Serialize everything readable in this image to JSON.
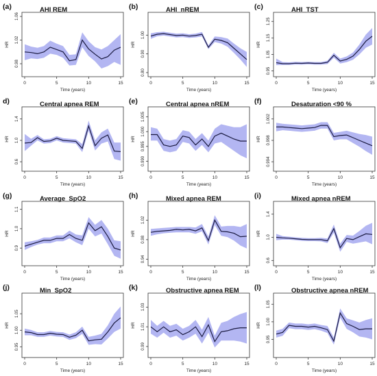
{
  "style": {
    "band_color": "#b3b6f2",
    "line_color": "#1a1a40",
    "axis_color": "#333333"
  },
  "chart_data": [
    {
      "type": "line",
      "letter": "(a)",
      "title": "AHI  REM",
      "xlabel": "Time (years)",
      "ylabel": "HR",
      "xlim": [
        0,
        15
      ],
      "xticks": [
        0,
        5,
        10,
        15
      ],
      "ylim": [
        0.965,
        1.06
      ],
      "yticks": [
        "0.98",
        "1.02",
        "1.06"
      ],
      "x": [
        0,
        1,
        2,
        3,
        4,
        5,
        6,
        7,
        8,
        9,
        10,
        11,
        12,
        13,
        14,
        15
      ],
      "y": [
        1.0,
        0.999,
        0.997,
        1.0,
        1.008,
        1.004,
        1.0,
        0.985,
        0.987,
        1.02,
        1.005,
        0.996,
        0.988,
        0.992,
        1.003,
        1.008
      ],
      "lower": [
        0.986,
        0.989,
        0.988,
        0.99,
        0.997,
        0.995,
        0.99,
        0.977,
        0.978,
        1.008,
        0.993,
        0.984,
        0.972,
        0.976,
        0.983,
        0.978
      ],
      "upper": [
        1.013,
        1.009,
        1.007,
        1.01,
        1.019,
        1.014,
        1.01,
        0.995,
        0.996,
        1.033,
        1.018,
        1.008,
        1.004,
        1.01,
        1.02,
        1.03
      ]
    },
    {
      "type": "line",
      "letter": "(b)",
      "title": "AHI_nREM",
      "xlabel": "Time (years)",
      "ylabel": "HR",
      "xlim": [
        0,
        15
      ],
      "xticks": [
        0,
        5,
        10,
        15
      ],
      "ylim": [
        0.8,
        1.1
      ],
      "yticks": [
        "0.80",
        "0.90",
        "1.00"
      ],
      "x": [
        0,
        1,
        2,
        3,
        4,
        5,
        6,
        7,
        8,
        9,
        10,
        11,
        12,
        13,
        14,
        15
      ],
      "y": [
        0.995,
        1.005,
        1.008,
        1.003,
        0.998,
        1.0,
        0.995,
        0.998,
        1.005,
        0.935,
        0.978,
        0.972,
        0.96,
        0.93,
        0.9,
        0.87
      ],
      "lower": [
        0.98,
        0.994,
        0.998,
        0.993,
        0.988,
        0.99,
        0.985,
        0.988,
        0.993,
        0.925,
        0.963,
        0.955,
        0.938,
        0.905,
        0.87,
        0.83
      ],
      "upper": [
        1.01,
        1.016,
        1.018,
        1.013,
        1.008,
        1.01,
        1.005,
        1.008,
        1.017,
        0.946,
        0.993,
        0.99,
        0.982,
        0.955,
        0.93,
        0.91
      ]
    },
    {
      "type": "line",
      "letter": "(c)",
      "title": "AHI_TST",
      "xlabel": "Time (years)",
      "ylabel": "HR",
      "xlim": [
        0,
        15
      ],
      "xticks": [
        0,
        5,
        10,
        15
      ],
      "ylim": [
        0.94,
        1.28
      ],
      "yticks": [
        "0.95",
        "1.05",
        "1.15",
        "1.25"
      ],
      "x": [
        0,
        1,
        2,
        3,
        4,
        5,
        6,
        7,
        8,
        9,
        10,
        11,
        12,
        13,
        14,
        15
      ],
      "y": [
        1.0,
        0.994,
        0.994,
        0.997,
        0.996,
        0.998,
        0.996,
        0.996,
        1.002,
        1.045,
        1.01,
        1.02,
        1.04,
        1.08,
        1.13,
        1.16
      ],
      "lower": [
        0.985,
        0.986,
        0.986,
        0.989,
        0.988,
        0.99,
        0.988,
        0.988,
        0.992,
        1.03,
        0.995,
        1.003,
        1.018,
        1.05,
        1.09,
        1.11
      ],
      "upper": [
        1.025,
        1.004,
        1.002,
        1.005,
        1.004,
        1.006,
        1.004,
        1.004,
        1.012,
        1.06,
        1.025,
        1.038,
        1.062,
        1.11,
        1.17,
        1.21
      ]
    },
    {
      "type": "line",
      "letter": "d)",
      "title": "Central  apnea  REM",
      "xlabel": "Time (years)",
      "ylabel": "HR",
      "xlim": [
        0,
        15
      ],
      "xticks": [
        0,
        5,
        10,
        15
      ],
      "ylim": [
        0.5,
        1.55
      ],
      "yticks": [
        "0.6",
        "1.0",
        "1.4"
      ],
      "x": [
        0,
        1,
        2,
        3,
        4,
        5,
        6,
        7,
        8,
        9,
        10,
        11,
        12,
        13,
        14,
        15
      ],
      "y": [
        0.95,
        0.96,
        1.05,
        0.98,
        0.99,
        1.04,
        1.0,
        0.99,
        0.98,
        0.85,
        1.27,
        0.9,
        1.04,
        1.1,
        0.8,
        0.79
      ],
      "lower": [
        0.8,
        0.9,
        1.0,
        0.94,
        0.95,
        1.0,
        0.96,
        0.95,
        0.94,
        0.78,
        1.18,
        0.81,
        0.94,
        0.98,
        0.65,
        0.62
      ],
      "upper": [
        1.12,
        1.03,
        1.1,
        1.02,
        1.03,
        1.08,
        1.04,
        1.03,
        1.02,
        0.93,
        1.37,
        1.0,
        1.15,
        1.22,
        0.96,
        0.96
      ]
    },
    {
      "type": "line",
      "letter": "(e)",
      "title": "Central  apnea  nREM",
      "xlabel": "Time (years)",
      "ylabel": "HR",
      "xlim": [
        0,
        15
      ],
      "xticks": [
        0,
        5,
        10,
        15
      ],
      "ylim": [
        0.988,
        1.007
      ],
      "yticks": [
        "0.990",
        "0.995",
        "1.000",
        "1.005"
      ],
      "x": [
        0,
        1,
        2,
        3,
        4,
        5,
        6,
        7,
        8,
        9,
        10,
        11,
        12,
        13,
        14,
        15
      ],
      "y": [
        0.999,
        0.999,
        0.9955,
        0.995,
        0.9955,
        0.9985,
        0.998,
        0.9955,
        0.9975,
        0.995,
        0.9985,
        0.9995,
        0.9985,
        0.9975,
        0.9968,
        0.9968
      ],
      "lower": [
        0.997,
        0.997,
        0.9935,
        0.993,
        0.9935,
        0.9965,
        0.996,
        0.9935,
        0.9955,
        0.993,
        0.996,
        0.9965,
        0.995,
        0.9935,
        0.992,
        0.991
      ],
      "upper": [
        1.0015,
        1.001,
        0.9975,
        0.997,
        0.9975,
        1.0005,
        1.0,
        0.9975,
        0.9995,
        0.997,
        1.001,
        1.0025,
        1.002,
        1.0015,
        1.0015,
        1.0025
      ]
    },
    {
      "type": "line",
      "letter": "(f)",
      "title": "Desaturation <90 %",
      "xlabel": "Time (years)",
      "ylabel": "HR",
      "xlim": [
        0,
        15
      ],
      "xticks": [
        0,
        5,
        10,
        15
      ],
      "ylim": [
        0.993,
        1.0035
      ],
      "yticks": [
        "0.994",
        "0.998",
        "1.002"
      ],
      "x": [
        0,
        1,
        2,
        3,
        4,
        5,
        6,
        7,
        8,
        9,
        10,
        11,
        12,
        13,
        14,
        15
      ],
      "y": [
        1.0005,
        1.0005,
        1.0004,
        1.0003,
        1.0002,
        1.0003,
        1.0004,
        1.0008,
        1.0008,
        0.9987,
        0.9989,
        0.999,
        0.9985,
        0.998,
        0.9975,
        0.997
      ],
      "lower": [
        0.9997,
        0.9999,
        0.9998,
        0.9997,
        0.9996,
        0.9997,
        0.9998,
        1.0002,
        1.0002,
        0.998,
        0.9982,
        0.9982,
        0.9975,
        0.9968,
        0.996,
        0.9953
      ],
      "upper": [
        1.0013,
        1.0011,
        1.001,
        1.0009,
        1.0008,
        1.0009,
        1.001,
        1.0014,
        1.0014,
        0.9994,
        0.9996,
        0.9998,
        0.9995,
        0.9992,
        0.999,
        0.9987
      ]
    },
    {
      "type": "line",
      "letter": "(g)",
      "title": "Average_SpO2",
      "xlabel": "Time (years)",
      "ylabel": "HR",
      "xlim": [
        0,
        15
      ],
      "xticks": [
        0,
        5,
        10,
        15
      ],
      "ylim": [
        0.83,
        1.12
      ],
      "yticks": [
        "0.9",
        "1.0",
        "1.1"
      ],
      "x": [
        0,
        1,
        2,
        3,
        4,
        5,
        6,
        7,
        8,
        9,
        10,
        11,
        12,
        13,
        14,
        15
      ],
      "y": [
        0.91,
        0.92,
        0.93,
        0.94,
        0.94,
        0.95,
        0.95,
        0.97,
        0.95,
        0.94,
        1.03,
        0.99,
        1.01,
        0.96,
        0.9,
        0.89
      ],
      "lower": [
        0.89,
        0.905,
        0.918,
        0.925,
        0.925,
        0.935,
        0.935,
        0.95,
        0.93,
        0.915,
        1.0,
        0.96,
        0.975,
        0.92,
        0.86,
        0.845
      ],
      "upper": [
        0.93,
        0.935,
        0.942,
        0.955,
        0.955,
        0.965,
        0.965,
        0.99,
        0.97,
        0.965,
        1.06,
        1.02,
        1.045,
        1.0,
        0.94,
        0.935
      ]
    },
    {
      "type": "line",
      "letter": "(h)",
      "title": "Mixed  apnea  REM",
      "xlabel": "Time (years)",
      "ylabel": "HR",
      "xlim": [
        0,
        15
      ],
      "xticks": [
        0,
        5,
        10,
        15
      ],
      "ylim": [
        0.935,
        1.05
      ],
      "yticks": [
        "0.94",
        "0.98",
        "1.02"
      ],
      "x": [
        0,
        1,
        2,
        3,
        4,
        5,
        6,
        7,
        8,
        9,
        10,
        11,
        12,
        13,
        14,
        15
      ],
      "y": [
        0.995,
        0.997,
        0.998,
        0.999,
        1.001,
        1.0,
        1.001,
        0.998,
        1.004,
        0.978,
        1.02,
        0.997,
        0.996,
        0.993,
        0.986,
        0.987
      ],
      "lower": [
        0.988,
        0.991,
        0.993,
        0.994,
        0.995,
        0.995,
        0.995,
        0.992,
        0.997,
        0.97,
        1.01,
        0.988,
        0.985,
        0.978,
        0.968,
        0.962
      ],
      "upper": [
        1.002,
        1.003,
        1.004,
        1.005,
        1.006,
        1.006,
        1.006,
        1.005,
        1.012,
        0.986,
        1.03,
        1.007,
        1.008,
        1.008,
        1.006,
        1.012
      ]
    },
    {
      "type": "line",
      "letter": "(i)",
      "title": "Mixed  apnea  nREM",
      "xlabel": "Time (years)",
      "ylabel": "HR",
      "xlim": [
        0,
        15
      ],
      "xticks": [
        0,
        5,
        10,
        15
      ],
      "ylim": [
        0.58,
        1.55
      ],
      "yticks": [
        "0.6",
        "1.0",
        "1.4"
      ],
      "x": [
        0,
        1,
        2,
        3,
        4,
        5,
        6,
        7,
        8,
        9,
        10,
        11,
        12,
        13,
        14,
        15
      ],
      "y": [
        1.0,
        0.99,
        0.985,
        0.975,
        0.965,
        0.96,
        0.96,
        0.96,
        0.94,
        1.15,
        0.82,
        0.98,
        0.96,
        1.01,
        1.06,
        1.05
      ],
      "lower": [
        0.95,
        0.96,
        0.96,
        0.95,
        0.94,
        0.935,
        0.935,
        0.93,
        0.9,
        1.08,
        0.75,
        0.92,
        0.89,
        0.91,
        0.93,
        0.88
      ],
      "upper": [
        1.06,
        1.02,
        1.01,
        1.0,
        0.99,
        0.985,
        0.985,
        0.99,
        0.98,
        1.22,
        0.89,
        1.04,
        1.03,
        1.11,
        1.2,
        1.25
      ]
    },
    {
      "type": "line",
      "letter": "(j)",
      "title": "Min_SpO2",
      "xlabel": "Time (years)",
      "ylabel": "HR",
      "xlim": [
        0,
        15
      ],
      "xticks": [
        0,
        5,
        10,
        15
      ],
      "ylim": [
        0.93,
        1.1
      ],
      "yticks": [
        "0.95",
        "1.00",
        "1.05"
      ],
      "x": [
        0,
        1,
        2,
        3,
        4,
        5,
        6,
        7,
        8,
        9,
        10,
        11,
        12,
        13,
        14,
        15
      ],
      "y": [
        0.995,
        0.993,
        0.987,
        0.987,
        0.991,
        0.988,
        0.987,
        0.979,
        0.985,
        1.0,
        0.968,
        0.971,
        0.973,
        0.995,
        1.022,
        1.038
      ],
      "lower": [
        0.985,
        0.985,
        0.98,
        0.98,
        0.984,
        0.981,
        0.98,
        0.971,
        0.976,
        0.989,
        0.956,
        0.958,
        0.957,
        0.975,
        0.995,
        1.005
      ],
      "upper": [
        1.005,
        1.001,
        0.994,
        0.994,
        0.998,
        0.995,
        0.994,
        0.987,
        0.994,
        1.011,
        0.98,
        0.984,
        0.989,
        1.015,
        1.05,
        1.072
      ]
    },
    {
      "type": "line",
      "letter": "(k)",
      "title": "Obstructive  apnea  REM",
      "xlabel": "Time (years)",
      "ylabel": "HR",
      "xlim": [
        0,
        15
      ],
      "xticks": [
        0,
        5,
        10,
        15
      ],
      "ylim": [
        0.983,
        1.04
      ],
      "yticks": [
        "0.99",
        "1.01",
        "1.03"
      ],
      "x": [
        0,
        1,
        2,
        3,
        4,
        5,
        6,
        7,
        8,
        9,
        10,
        11,
        12,
        13,
        14,
        15
      ],
      "y": [
        1.01,
        1.005,
        1.01,
        1.005,
        1.007,
        1.002,
        1.005,
        1.01,
        1.0,
        1.012,
        0.995,
        1.005,
        1.006,
        1.008,
        1.009,
        1.009
      ],
      "lower": [
        1.003,
        0.999,
        1.004,
        0.999,
        1.001,
        0.996,
        0.999,
        1.003,
        0.993,
        1.004,
        0.989,
        0.996,
        0.996,
        0.996,
        0.995,
        0.993
      ],
      "upper": [
        1.017,
        1.011,
        1.016,
        1.011,
        1.013,
        1.008,
        1.011,
        1.017,
        1.007,
        1.02,
        1.001,
        1.014,
        1.016,
        1.02,
        1.023,
        1.025
      ]
    },
    {
      "type": "line",
      "letter": "(l)",
      "title": "Obstructive  apnea  nREM",
      "xlabel": "Time (years)",
      "ylabel": "HR",
      "xlim": [
        0,
        15
      ],
      "xticks": [
        0,
        5,
        10,
        15
      ],
      "ylim": [
        0.91,
        1.07
      ],
      "yticks": [
        "0.95",
        "1.00",
        "1.05"
      ],
      "x": [
        0,
        1,
        2,
        3,
        4,
        5,
        6,
        7,
        8,
        9,
        10,
        11,
        12,
        13,
        14,
        15
      ],
      "y": [
        0.965,
        0.97,
        0.99,
        0.987,
        0.987,
        0.985,
        0.987,
        0.983,
        0.978,
        0.945,
        1.025,
        0.995,
        0.987,
        0.978,
        0.98,
        0.98
      ],
      "lower": [
        0.955,
        0.96,
        0.982,
        0.979,
        0.979,
        0.977,
        0.979,
        0.975,
        0.968,
        0.935,
        1.012,
        0.98,
        0.97,
        0.958,
        0.955,
        0.95
      ],
      "upper": [
        0.975,
        0.98,
        0.998,
        0.995,
        0.995,
        0.993,
        0.995,
        0.991,
        0.988,
        0.955,
        1.038,
        1.01,
        1.004,
        0.998,
        1.005,
        1.01
      ]
    }
  ]
}
